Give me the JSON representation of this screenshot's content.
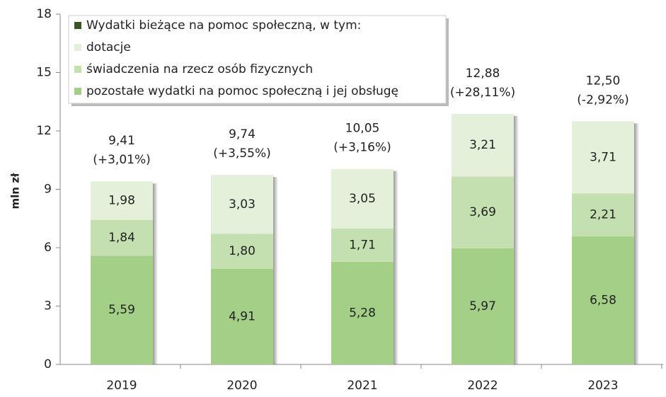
{
  "chart_data": {
    "type": "stacked_bar",
    "y_label": "mln zł",
    "categories": [
      "2019",
      "2020",
      "2021",
      "2022",
      "2023"
    ],
    "series": [
      {
        "name": "pozostałe wydatki na pomoc społeczną i jej obsługę",
        "color": "#a3cf86",
        "values": [
          5.59,
          4.91,
          5.28,
          5.97,
          6.58
        ],
        "value_labels": [
          "5,59",
          "4,91",
          "5,28",
          "5,97",
          "6,58"
        ]
      },
      {
        "name": "świadczenia na rzecz osób fizycznych",
        "color": "#c5e0b0",
        "values": [
          1.84,
          1.8,
          1.71,
          3.69,
          2.21
        ],
        "value_labels": [
          "1,84",
          "1,80",
          "1,71",
          "3,69",
          "2,21"
        ]
      },
      {
        "name": "dotacje",
        "color": "#e5f0da",
        "values": [
          1.98,
          3.03,
          3.05,
          3.21,
          3.71
        ],
        "value_labels": [
          "1,98",
          "3,03",
          "3,05",
          "3,21",
          "3,71"
        ]
      }
    ],
    "total": {
      "name": "Wydatki bieżące na pomoc społeczną, w tym:",
      "color": "#375623",
      "values": [
        9.41,
        9.74,
        10.05,
        12.88,
        12.5
      ],
      "value_labels": [
        "9,41",
        "9,74",
        "10,05",
        "12,88",
        "12,50"
      ],
      "changes": [
        3.01,
        3.55,
        3.16,
        28.11,
        -2.92
      ],
      "change_labels": [
        "(+3,01%)",
        "(+3,55%)",
        "(+3,16%)",
        "(+28,11%)",
        "(-2,92%)"
      ]
    },
    "ylim": [
      0,
      18
    ],
    "yticks": [
      0,
      3,
      6,
      9,
      12,
      15,
      18
    ],
    "grid": false,
    "legend": "top-left"
  }
}
